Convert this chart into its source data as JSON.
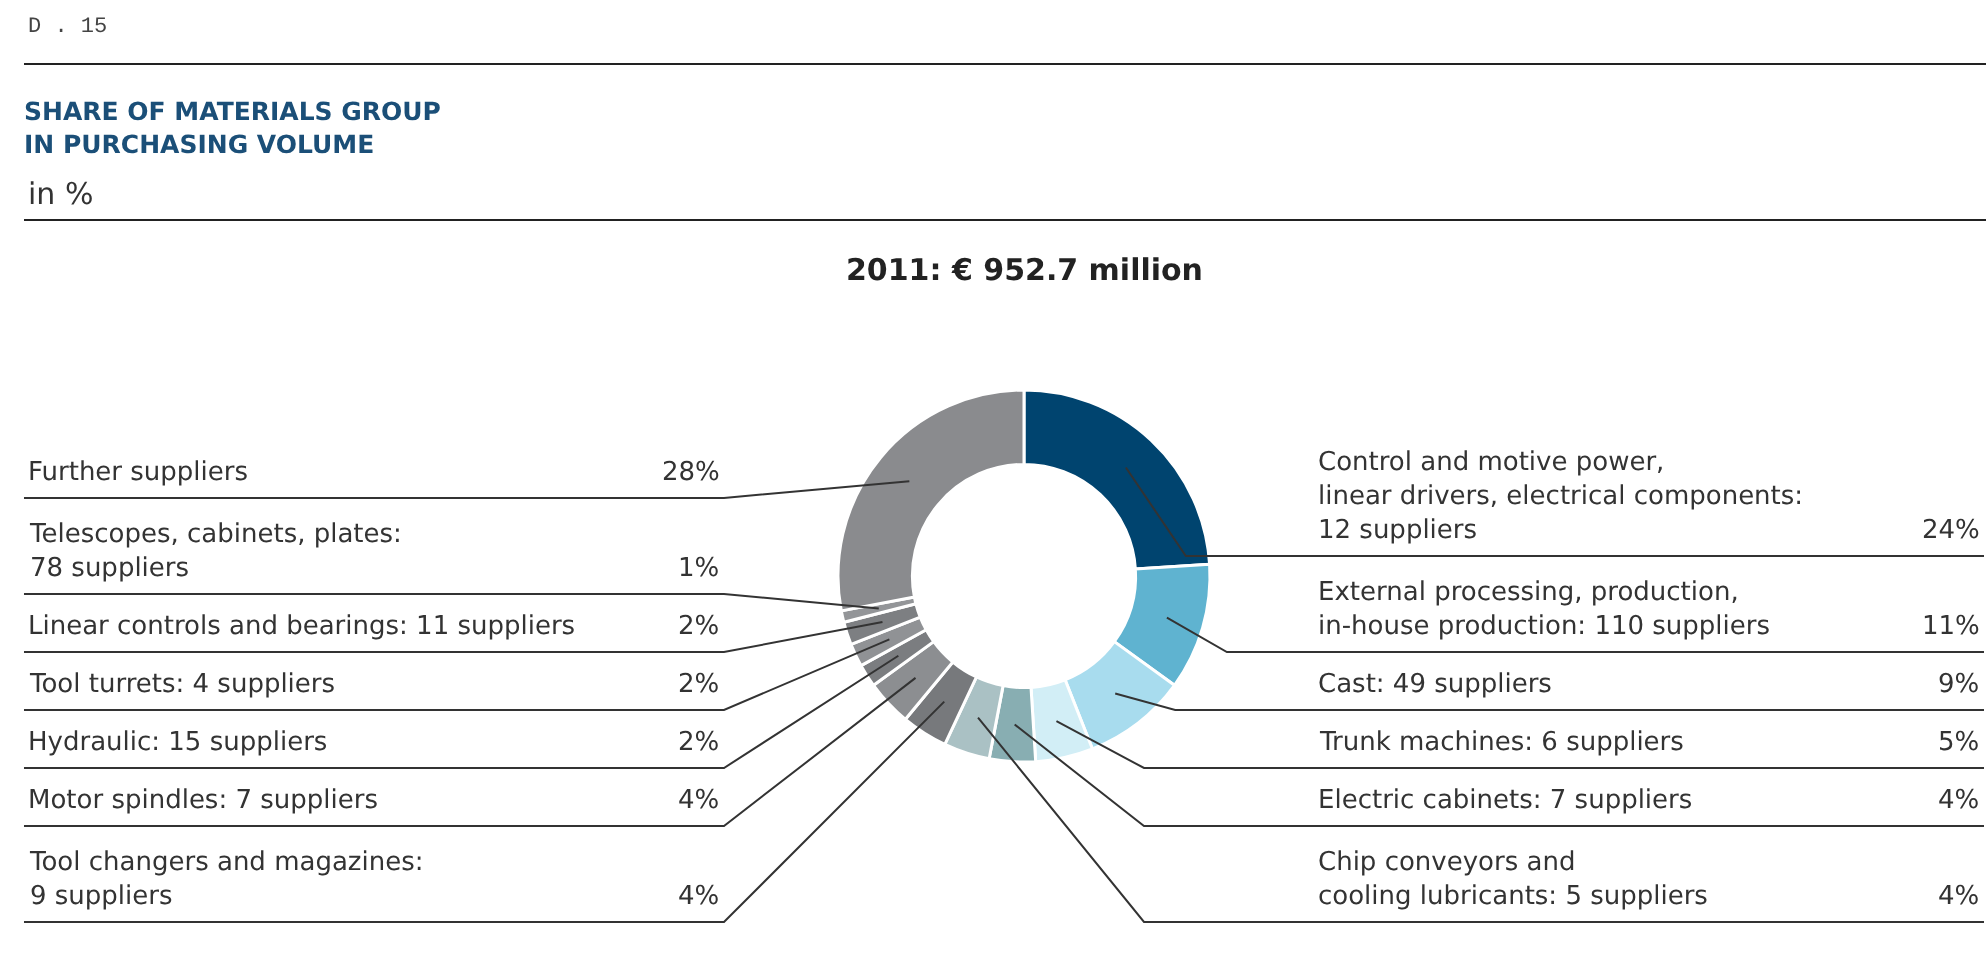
{
  "chart_data": {
    "type": "donut",
    "title": "SHARE OF MATERIALS GROUP\nIN PURCHASING VOLUME",
    "subtitle": "in %",
    "annotations": [
      "D . 15",
      "2011: € 952.7 million"
    ],
    "categories": [
      "Control and motive power,\nlinear drivers, electrical components:\n12 suppliers",
      "External processing, production,\nin-house production: 110 suppliers",
      "Cast: 49 suppliers",
      "Trunk machines: 6 suppliers",
      "Electric cabinets: 7 suppliers",
      "Chip conveyors and\ncooling lubricants: 5 suppliers",
      "Tool changers and magazines:\n9 suppliers",
      "Motor spindles: 7 suppliers",
      "Hydraulic: 15 suppliers",
      "Tool turrets: 4 suppliers",
      "Linear controls and bearings: 11 suppliers",
      "Telescopes, cabinets, plates:\n78 suppliers",
      "Further suppliers"
    ],
    "values": [
      24,
      11,
      9,
      5,
      4,
      4,
      4,
      4,
      2,
      2,
      2,
      1,
      28
    ],
    "value_labels": [
      "24%",
      "11%",
      "9%",
      "5%",
      "4%",
      "4%",
      "4%",
      "4%",
      "2%",
      "2%",
      "2%",
      "1%",
      "28%"
    ],
    "colors": [
      "#00446f",
      "#5fb3d0",
      "#a8dcee",
      "#d2eef6",
      "#88aeb2",
      "#aac1c4",
      "#77797c",
      "#8c8e91",
      "#7b7d80",
      "#909295",
      "#7d7f82",
      "#939598",
      "#8a8b8e"
    ]
  }
}
